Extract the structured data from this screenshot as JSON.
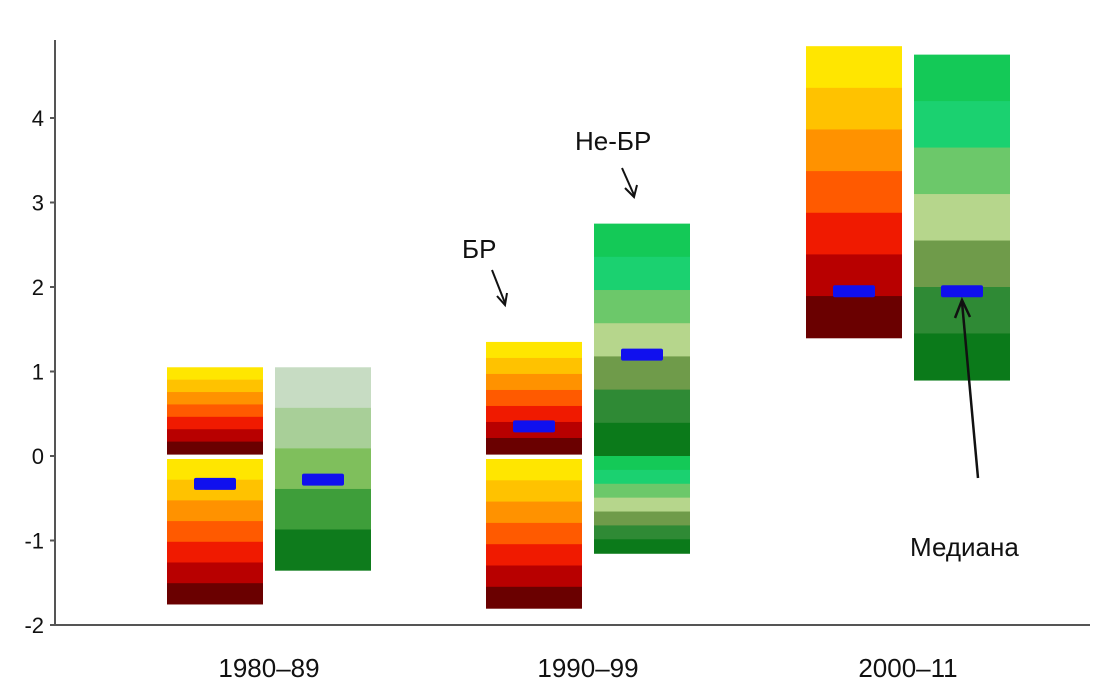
{
  "chart_data": {
    "type": "bar",
    "subtype": "floating-range-with-median",
    "title": "",
    "xlabel": "",
    "ylabel": "",
    "ylim": [
      -2,
      5
    ],
    "yticks": [
      -2,
      -1,
      0,
      1,
      2,
      3,
      4
    ],
    "grid": false,
    "categories": [
      "1980–89",
      "1990–99",
      "2000–11"
    ],
    "series": [
      {
        "name": "БР",
        "ranges": [
          [
            -1.75,
            1.05
          ],
          [
            -1.8,
            1.35
          ],
          [
            1.4,
            4.85
          ]
        ],
        "medians": [
          -0.33,
          0.35,
          1.95
        ]
      },
      {
        "name": "Не-БР",
        "ranges": [
          [
            -1.35,
            1.05
          ],
          [
            -1.15,
            2.75
          ],
          [
            0.9,
            4.75
          ]
        ],
        "medians": [
          -0.28,
          1.2,
          1.95
        ]
      }
    ],
    "annotations": [
      {
        "text": "БР",
        "target": "1990–99 / БР"
      },
      {
        "text": "Не-БР",
        "target": "1990–99 / Не-БР"
      },
      {
        "text": "Медиана",
        "target": "2000–11 / Не-БР median"
      }
    ],
    "colors": {
      "series1_gradient": [
        "#ffe600",
        "#ffc200",
        "#ff9200",
        "#ff5a00",
        "#f01a00",
        "#b80000",
        "#6a0000"
      ],
      "series2_gradient": [
        "#14c957",
        "#1bd170",
        "#6cc86a",
        "#b6d68c",
        "#6f9b4a",
        "#2f8a35",
        "#0b7a1a"
      ],
      "series2_gradient_1980s": [
        "#c7dcc3",
        "#a8cf98",
        "#7fbf5c",
        "#3e9e3a",
        "#0e7b1c"
      ],
      "median": "#1010ee",
      "axis": "#555555"
    }
  }
}
